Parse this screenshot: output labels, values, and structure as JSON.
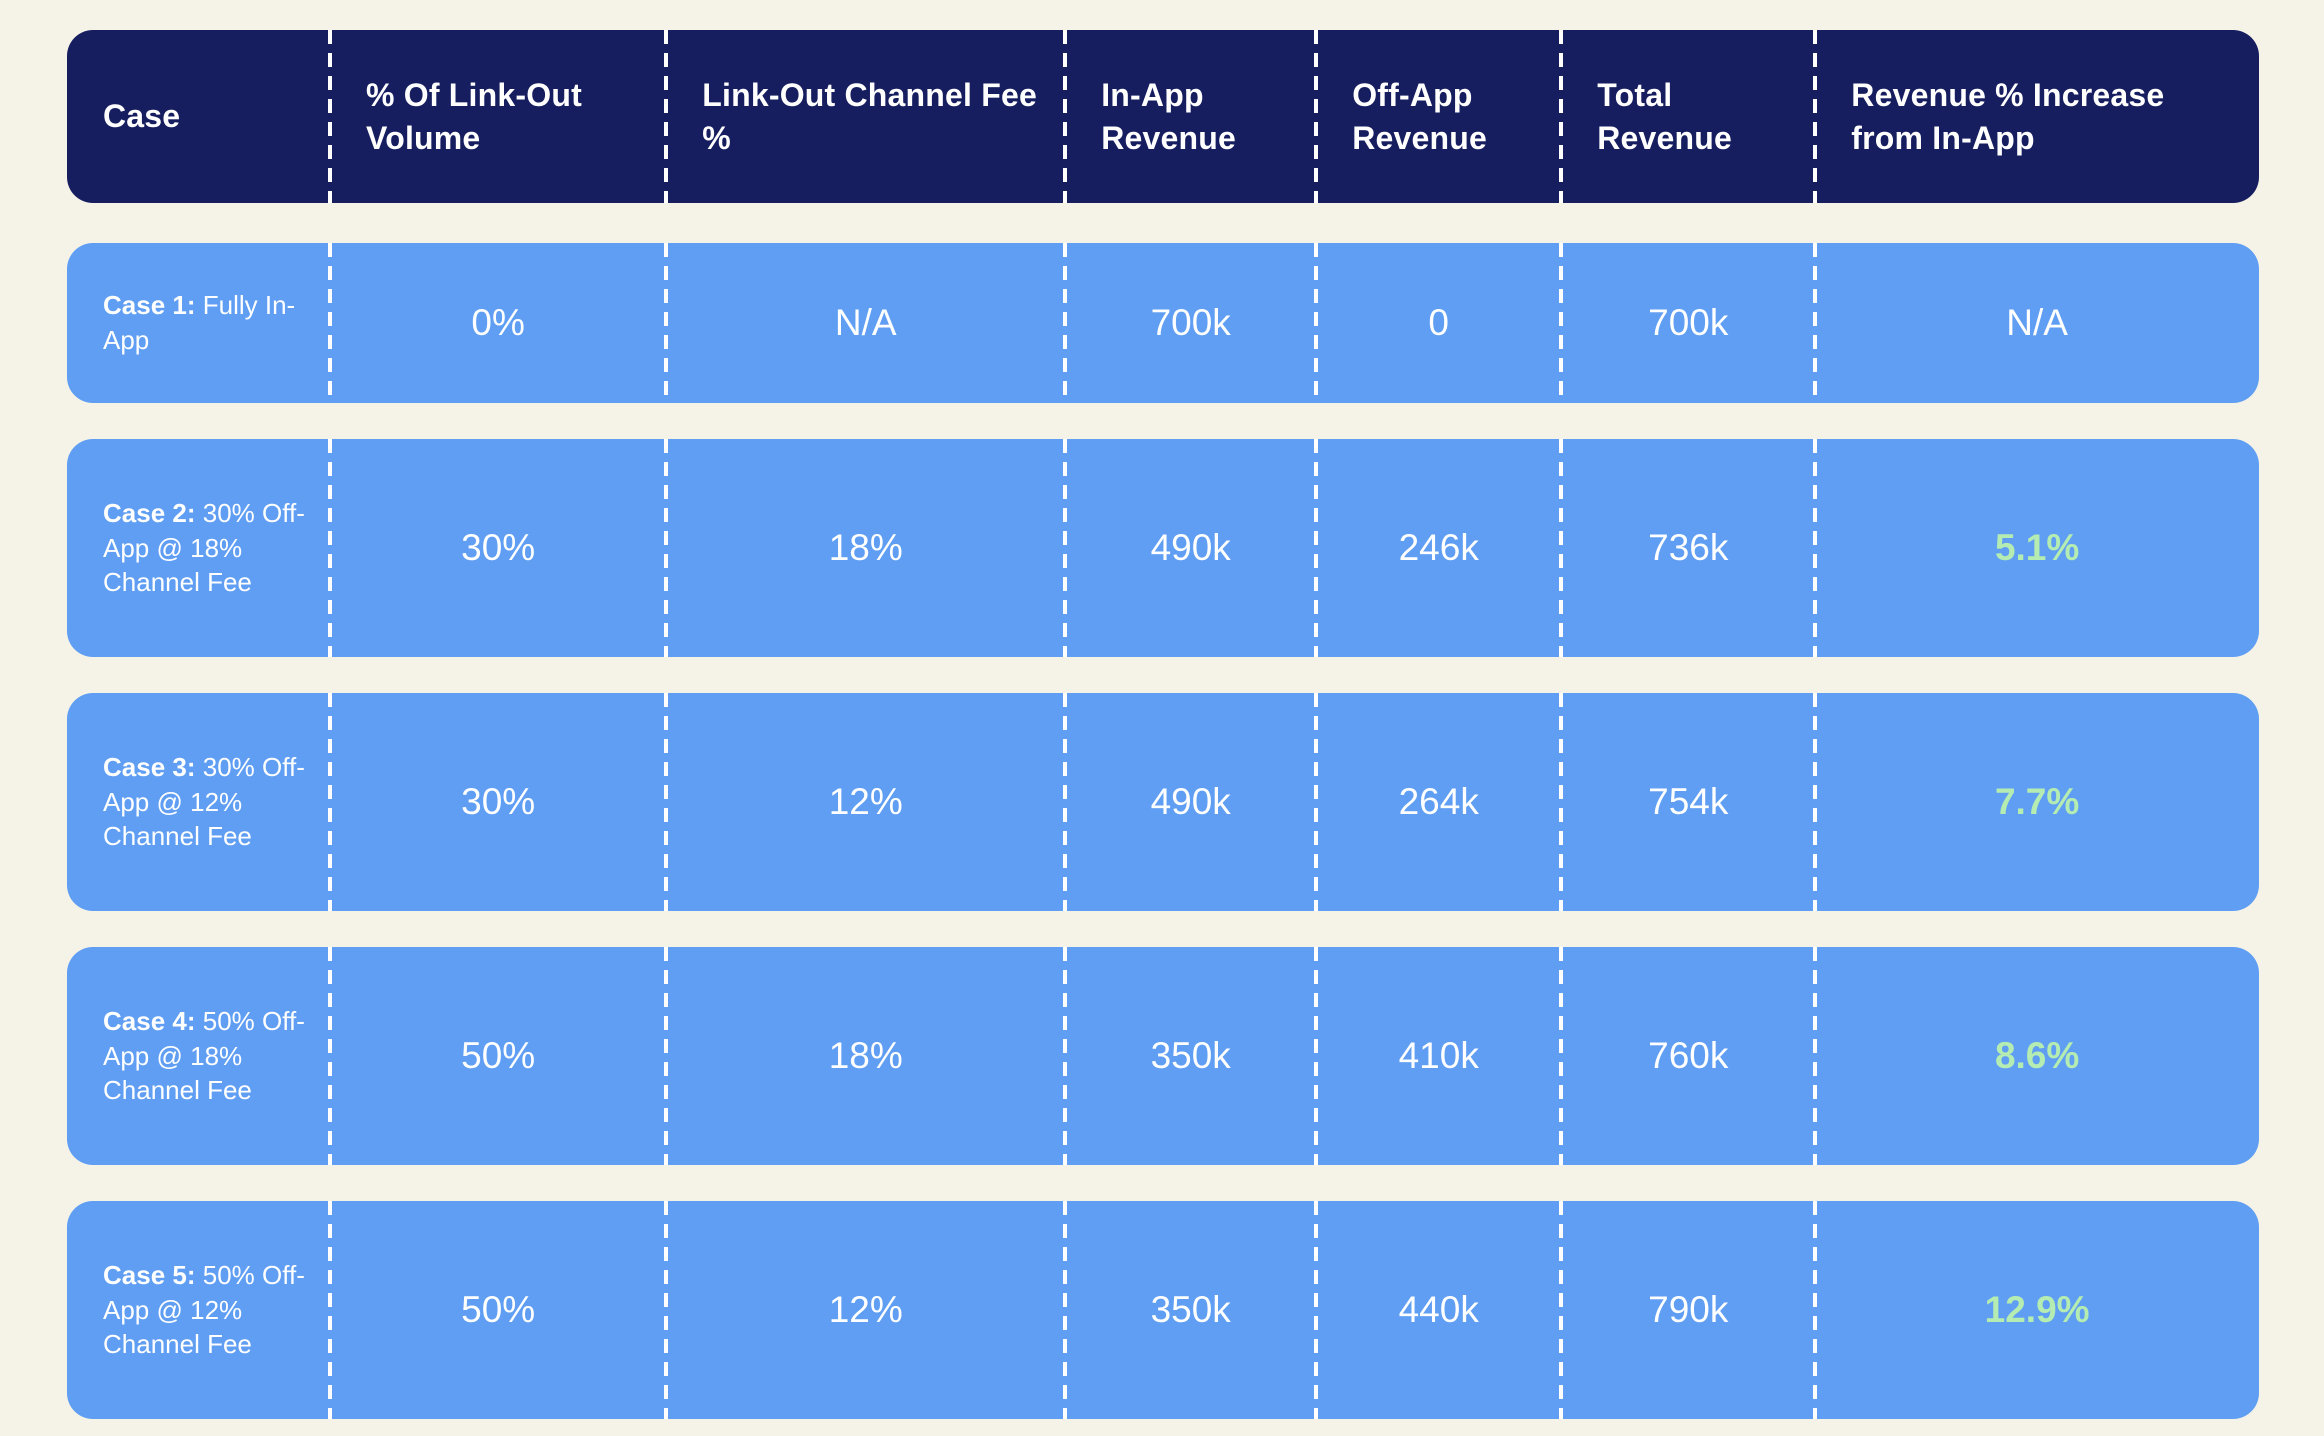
{
  "colors": {
    "bg": "#f5f3e7",
    "navy": "#161e5f",
    "row-blue": "#5f9ef3",
    "text-white": "#ffffff",
    "green": "#b5ecb2"
  },
  "table": {
    "columns": [
      "Case",
      "% Of Link-Out Volume",
      "Link-Out Channel Fee %",
      "In-App Revenue",
      "Off-App Revenue",
      "Total Revenue",
      "Revenue % Increase from In-App"
    ],
    "rows": [
      {
        "case_label": "Case 1:",
        "case_desc": "Fully In-App",
        "link_out_volume": "0%",
        "channel_fee": "N/A",
        "in_app_revenue": "700k",
        "off_app_revenue": "0",
        "total_revenue": "700k",
        "revenue_increase": "N/A",
        "increase_highlighted": false
      },
      {
        "case_label": "Case 2:",
        "case_desc": "30% Off-App @ 18% Channel Fee",
        "link_out_volume": "30%",
        "channel_fee": "18%",
        "in_app_revenue": "490k",
        "off_app_revenue": "246k",
        "total_revenue": "736k",
        "revenue_increase": "5.1%",
        "increase_highlighted": true
      },
      {
        "case_label": "Case 3:",
        "case_desc": "30% Off-App @ 12% Channel Fee",
        "link_out_volume": "30%",
        "channel_fee": "12%",
        "in_app_revenue": "490k",
        "off_app_revenue": "264k",
        "total_revenue": "754k",
        "revenue_increase": "7.7%",
        "increase_highlighted": true
      },
      {
        "case_label": "Case 4:",
        "case_desc": "50% Off-App @ 18% Channel Fee",
        "link_out_volume": "50%",
        "channel_fee": "18%",
        "in_app_revenue": "350k",
        "off_app_revenue": "410k",
        "total_revenue": "760k",
        "revenue_increase": "8.6%",
        "increase_highlighted": true
      },
      {
        "case_label": "Case 5:",
        "case_desc": "50% Off-App @ 12% Channel Fee",
        "link_out_volume": "50%",
        "channel_fee": "12%",
        "in_app_revenue": "350k",
        "off_app_revenue": "440k",
        "total_revenue": "790k",
        "revenue_increase": "12.9%",
        "increase_highlighted": true
      }
    ]
  },
  "chart_data": {
    "type": "table",
    "columns": [
      "Case",
      "% Of Link-Out Volume",
      "Link-Out Channel Fee %",
      "In-App Revenue",
      "Off-App Revenue",
      "Total Revenue",
      "Revenue % Increase from In-App"
    ],
    "rows": [
      [
        "Case 1: Fully In-App",
        "0%",
        "N/A",
        "700k",
        "0",
        "700k",
        "N/A"
      ],
      [
        "Case 2: 30% Off-App @ 18% Channel Fee",
        "30%",
        "18%",
        "490k",
        "246k",
        "736k",
        "5.1%"
      ],
      [
        "Case 3: 30% Off-App @ 12% Channel Fee",
        "30%",
        "12%",
        "490k",
        "264k",
        "754k",
        "7.7%"
      ],
      [
        "Case 4: 50% Off-App @ 18% Channel Fee",
        "50%",
        "18%",
        "350k",
        "410k",
        "760k",
        "8.6%"
      ],
      [
        "Case 5: 50% Off-App @ 12% Channel Fee",
        "50%",
        "12%",
        "350k",
        "440k",
        "790k",
        "12.9%"
      ]
    ],
    "notes": "Revenue % Increase values for cases 2-5 rendered in highlight green; units k = thousands"
  }
}
